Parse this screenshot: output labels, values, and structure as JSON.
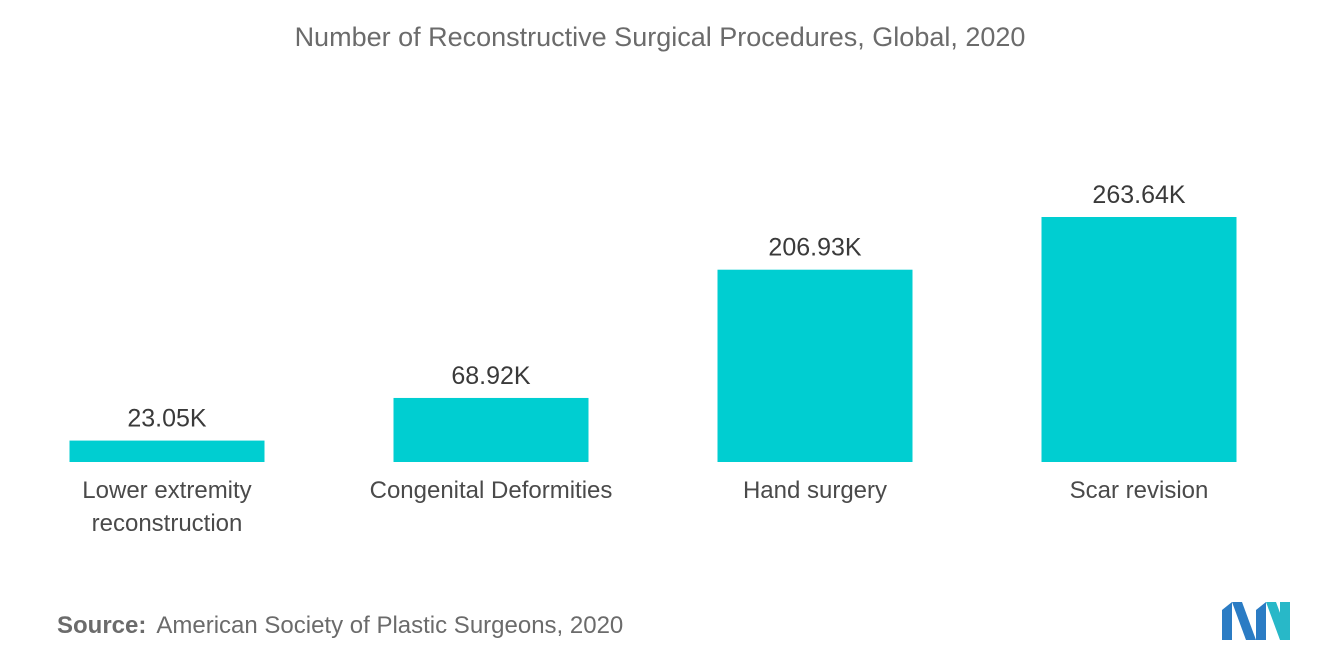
{
  "chart_data": {
    "type": "bar",
    "title": "Number of Reconstructive Surgical Procedures, Global, 2020",
    "categories": [
      [
        "Lower extremity",
        "reconstruction"
      ],
      [
        "Congenital Deformities"
      ],
      [
        "Hand surgery"
      ],
      [
        "Scar revision"
      ]
    ],
    "values": [
      23.05,
      68.92,
      206.93,
      263.64
    ],
    "data_labels": [
      "23.05K",
      "68.92K",
      "206.93K",
      "263.64K"
    ],
    "unit": "K",
    "ylim": [
      0,
      263.64
    ],
    "grid": false,
    "legend": "none",
    "bar_color": "#00CED1"
  },
  "source": {
    "prefix": "Source:",
    "text": "American Society of Plastic Surgeons, 2020"
  },
  "logo": {
    "icon": "brand-logo-icon",
    "colors": [
      "#2b7cc4",
      "#28b8c8"
    ]
  }
}
